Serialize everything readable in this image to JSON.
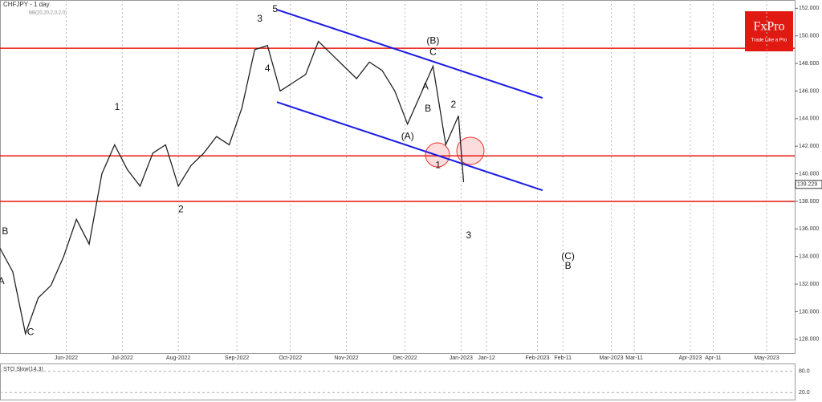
{
  "chart_data": {
    "type": "line",
    "title": "CHFJPY - 1 day",
    "subtitle": "BB(20,20,2,0,2,0)",
    "logo": {
      "brand": "FxPro",
      "tagline": "Trade Like a Pro"
    },
    "x": [
      0,
      5,
      10,
      15,
      20,
      25,
      30,
      35,
      40,
      45,
      50,
      55,
      60,
      65,
      70,
      75,
      80,
      85,
      90,
      95,
      100,
      105,
      110,
      115,
      120,
      125,
      130,
      135,
      140,
      145,
      150,
      155,
      160,
      165,
      170,
      175,
      180,
      182
    ],
    "series": [
      {
        "name": "CHFJPY",
        "color": "#222222",
        "values": [
          134.6,
          132.9,
          128.4,
          131.0,
          131.9,
          134.0,
          136.7,
          134.9,
          140.0,
          142.1,
          140.3,
          139.1,
          141.5,
          142.1,
          139.1,
          140.6,
          141.5,
          142.7,
          142.1,
          144.8,
          149.0,
          149.3,
          146.0,
          146.6,
          147.2,
          149.6,
          148.7,
          147.8,
          146.9,
          148.1,
          147.5,
          146.0,
          143.6,
          145.7,
          147.8,
          142.1,
          144.2,
          139.4
        ]
      }
    ],
    "last_price": 139.229,
    "xlim": [
      0,
      312
    ],
    "ylim": [
      127,
      152.6
    ],
    "xticks": [
      {
        "value": 26,
        "label": "Jun-2022"
      },
      {
        "value": 48,
        "label": "Jul-2022"
      },
      {
        "value": 70,
        "label": "Aug-2022"
      },
      {
        "value": 93,
        "label": "Sep-2022"
      },
      {
        "value": 114,
        "label": "Oct-2022"
      },
      {
        "value": 136,
        "label": "Nov-2022"
      },
      {
        "value": 159,
        "label": "Dec-2022"
      },
      {
        "value": 181,
        "label": "Jan-2023"
      },
      {
        "value": 191,
        "label": "Jan-12"
      },
      {
        "value": 211,
        "label": "Feb-2023"
      },
      {
        "value": 221,
        "label": "Feb-11"
      },
      {
        "value": 240,
        "label": "Mar-2023"
      },
      {
        "value": 249,
        "label": "Mar-11"
      },
      {
        "value": 271,
        "label": "Apr-2023"
      },
      {
        "value": 280,
        "label": "Apr-11"
      },
      {
        "value": 301,
        "label": "May-2023"
      }
    ],
    "yticks": [
      {
        "value": 128,
        "label": "128.000"
      },
      {
        "value": 130,
        "label": "130.000"
      },
      {
        "value": 132,
        "label": "132.000"
      },
      {
        "value": 134,
        "label": "134.000"
      },
      {
        "value": 136,
        "label": "136.000"
      },
      {
        "value": 138,
        "label": "138.000"
      },
      {
        "value": 140,
        "label": "140.000"
      },
      {
        "value": 142,
        "label": "142.000"
      },
      {
        "value": 144,
        "label": "144.000"
      },
      {
        "value": 146,
        "label": "146.000"
      },
      {
        "value": 148,
        "label": "148.000"
      },
      {
        "value": 150,
        "label": "150.000"
      },
      {
        "value": 152,
        "label": "152.000"
      }
    ],
    "hlines": [
      149.1,
      141.3,
      138.0
    ],
    "hline_color": "#e8170f",
    "channels": [
      {
        "x": [
          108.7,
          213
        ],
        "values": [
          151.9,
          145.5
        ]
      },
      {
        "x": [
          108.7,
          213
        ],
        "values": [
          145.2,
          138.8
        ]
      }
    ],
    "channel_color": "#1a1ae6",
    "annotations": [
      {
        "text": "B",
        "x": 2,
        "y": 135.8
      },
      {
        "text": "A",
        "x": 0.5,
        "y": 132.2
      },
      {
        "text": "C",
        "x": 12,
        "y": 128.5
      },
      {
        "text": "1",
        "x": 46,
        "y": 144.8
      },
      {
        "text": "2",
        "x": 71,
        "y": 137.4
      },
      {
        "text": "3",
        "x": 102,
        "y": 151.2
      },
      {
        "text": "4",
        "x": 105,
        "y": 147.6
      },
      {
        "text": "5",
        "x": 108,
        "y": 151.9
      },
      {
        "text": "(B)",
        "x": 170,
        "y": 149.6
      },
      {
        "text": "C",
        "x": 170,
        "y": 148.8
      },
      {
        "text": "A",
        "x": 167,
        "y": 146.3
      },
      {
        "text": "B",
        "x": 168,
        "y": 144.7
      },
      {
        "text": "(A)",
        "x": 160,
        "y": 142.7
      },
      {
        "text": "1",
        "x": 172,
        "y": 140.6
      },
      {
        "text": "2",
        "x": 178,
        "y": 145.0
      },
      {
        "text": "3",
        "x": 184,
        "y": 135.5
      },
      {
        "text": "(C)",
        "x": 223,
        "y": 134.0
      },
      {
        "text": "B",
        "x": 223,
        "y": 133.3
      }
    ],
    "oscillator": {
      "title": "STO Slow(14,3)",
      "ylim": [
        0,
        100
      ],
      "yticks": [
        {
          "value": 80,
          "label": "80.0"
        },
        {
          "value": 20,
          "label": "20.0"
        }
      ]
    }
  }
}
